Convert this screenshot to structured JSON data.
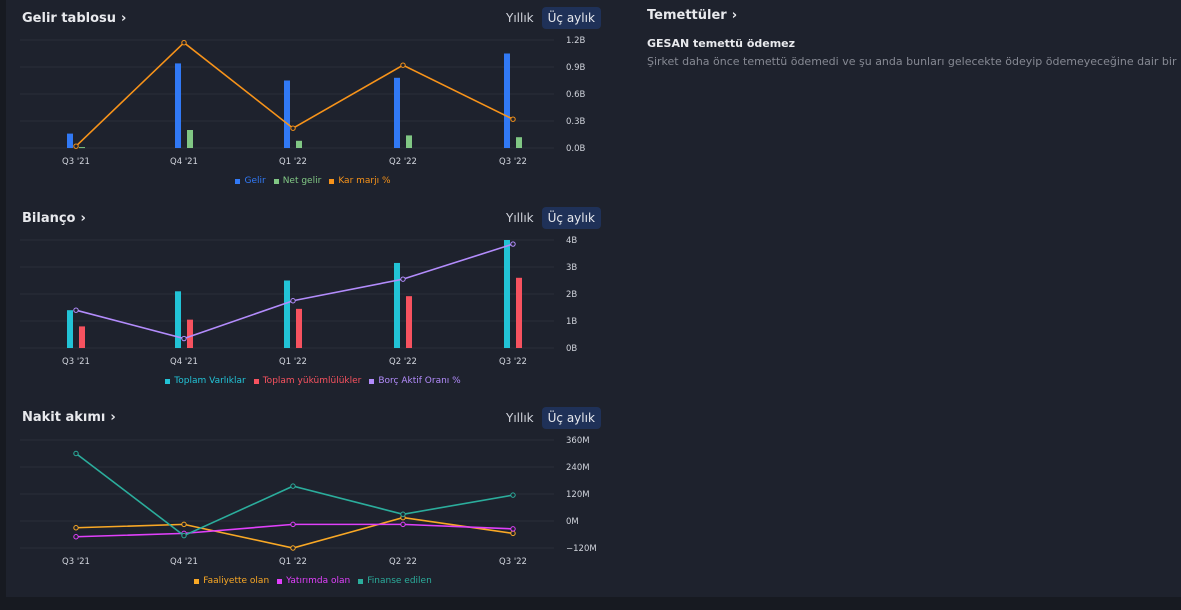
{
  "tabs": {
    "annual": "Yıllık",
    "quarterly": "Üç aylık"
  },
  "dividends": {
    "title": "Temettüler",
    "subtitle": "GESAN temettü ödemez",
    "description": "Şirket daha önce temettü ödemedi ve şu anda bunları gelecekte ödeyip ödemeyeceğine dair bir bilgi yok."
  },
  "chart_data": [
    {
      "type": "bar",
      "title": "Gelir tablosu",
      "categories": [
        "Q3 '21",
        "Q4 '21",
        "Q1 '22",
        "Q2 '22",
        "Q3 '22"
      ],
      "yticks": [
        "1.2B",
        "0.9B",
        "0.6B",
        "0.3B",
        "0.0B"
      ],
      "ylim": [
        0,
        1.2
      ],
      "y2lim": [
        0,
        1.2
      ],
      "series": [
        {
          "name": "Gelir",
          "kind": "bar",
          "color": "#3179f5",
          "values": [
            0.16,
            0.94,
            0.75,
            0.78,
            1.05
          ]
        },
        {
          "name": "Net gelir",
          "kind": "bar",
          "color": "#81c784",
          "values": [
            0.01,
            0.2,
            0.08,
            0.14,
            0.12
          ]
        },
        {
          "name": "Kar marjı %",
          "kind": "line",
          "color": "#f7931a",
          "values": [
            0.02,
            1.17,
            0.22,
            0.92,
            0.32
          ]
        }
      ]
    },
    {
      "type": "bar",
      "title": "Bilanço",
      "categories": [
        "Q3 '21",
        "Q4 '21",
        "Q1 '22",
        "Q2 '22",
        "Q3 '22"
      ],
      "yticks": [
        "4B",
        "3B",
        "2B",
        "1B",
        "0B"
      ],
      "ylim": [
        0,
        4
      ],
      "y2lim": [
        0,
        4
      ],
      "series": [
        {
          "name": "Toplam Varlıklar",
          "kind": "bar",
          "color": "#22c3d6",
          "values": [
            1.4,
            2.1,
            2.5,
            3.15,
            4.0
          ]
        },
        {
          "name": "Toplam yükümlülükler",
          "kind": "bar",
          "color": "#f7525f",
          "values": [
            0.8,
            1.05,
            1.45,
            1.92,
            2.6
          ]
        },
        {
          "name": "Borç Aktif Oranı %",
          "kind": "line",
          "color": "#b38cfc",
          "values": [
            1.4,
            0.35,
            1.75,
            2.55,
            3.85
          ]
        }
      ]
    },
    {
      "type": "line",
      "title": "Nakit akımı",
      "categories": [
        "Q3 '21",
        "Q4 '21",
        "Q1 '22",
        "Q2 '22",
        "Q3 '22"
      ],
      "yticks": [
        "360M",
        "240M",
        "120M",
        "0M",
        "−120M"
      ],
      "ylim": [
        -120,
        360
      ],
      "series": [
        {
          "name": "Faaliyette olan",
          "kind": "line",
          "color": "#f9a825",
          "values": [
            -30,
            -15,
            -120,
            15,
            -55
          ]
        },
        {
          "name": "Yatırımda olan",
          "kind": "line",
          "color": "#e040fb",
          "values": [
            -70,
            -55,
            -15,
            -15,
            -35
          ]
        },
        {
          "name": "Finanse edilen",
          "kind": "line",
          "color": "#2bad9c",
          "values": [
            300,
            -65,
            155,
            30,
            115
          ]
        }
      ]
    }
  ]
}
